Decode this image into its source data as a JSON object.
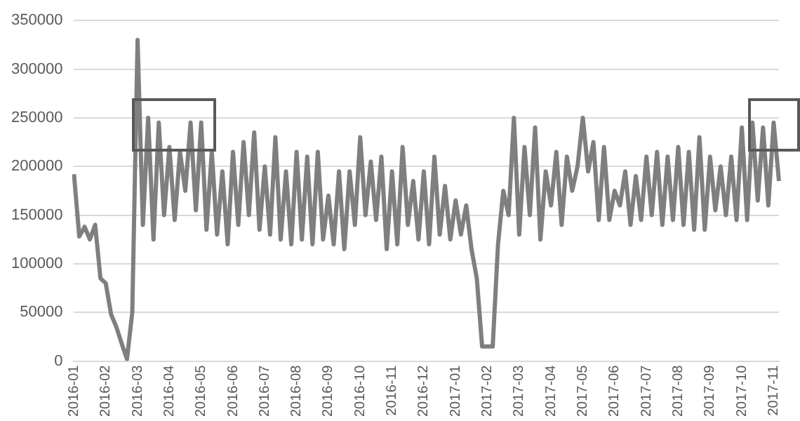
{
  "chart_data": {
    "type": "line",
    "categories": [
      "2016-01",
      null,
      null,
      null,
      null,
      null,
      "2016-02",
      null,
      null,
      null,
      null,
      null,
      "2016-03",
      null,
      null,
      null,
      null,
      null,
      "2016-04",
      null,
      null,
      null,
      null,
      null,
      "2016-05",
      null,
      null,
      null,
      null,
      null,
      "2016-06",
      null,
      null,
      null,
      null,
      null,
      "2016-07",
      null,
      null,
      null,
      null,
      null,
      "2016-08",
      null,
      null,
      null,
      null,
      null,
      "2016-09",
      null,
      null,
      null,
      null,
      null,
      "2016-10",
      null,
      null,
      null,
      null,
      null,
      "2016-11",
      null,
      null,
      null,
      null,
      null,
      "2016-12",
      null,
      null,
      null,
      null,
      null,
      "2017-01",
      null,
      null,
      null,
      null,
      null,
      "2017-02",
      null,
      null,
      null,
      null,
      null,
      "2017-03",
      null,
      null,
      null,
      null,
      null,
      "2017-04",
      null,
      null,
      null,
      null,
      null,
      "2017-05",
      null,
      null,
      null,
      null,
      null,
      "2017-06",
      null,
      null,
      null,
      null,
      null,
      "2017-07",
      null,
      null,
      null,
      null,
      null,
      "2017-08",
      null,
      null,
      null,
      null,
      null,
      "2017-09",
      null,
      null,
      null,
      null,
      null,
      "2017-10",
      null,
      null,
      null,
      null,
      null,
      "2017-11",
      null
    ],
    "series": [
      {
        "color": "#7f7f7f",
        "values": [
          192000,
          128000,
          138000,
          125000,
          140000,
          85000,
          80000,
          48000,
          35000,
          18000,
          2000,
          50000,
          330000,
          140000,
          250000,
          125000,
          245000,
          150000,
          220000,
          145000,
          215000,
          175000,
          245000,
          155000,
          245000,
          135000,
          215000,
          130000,
          195000,
          120000,
          215000,
          140000,
          225000,
          150000,
          235000,
          135000,
          200000,
          130000,
          230000,
          125000,
          195000,
          120000,
          215000,
          125000,
          210000,
          120000,
          215000,
          125000,
          170000,
          120000,
          195000,
          115000,
          195000,
          140000,
          230000,
          150000,
          205000,
          145000,
          210000,
          115000,
          195000,
          120000,
          220000,
          140000,
          185000,
          125000,
          195000,
          120000,
          210000,
          130000,
          180000,
          125000,
          165000,
          130000,
          160000,
          115000,
          85000,
          15000,
          15000,
          15000,
          120000,
          175000,
          150000,
          250000,
          130000,
          220000,
          150000,
          240000,
          125000,
          195000,
          160000,
          215000,
          140000,
          210000,
          175000,
          200000,
          250000,
          195000,
          225000,
          145000,
          220000,
          145000,
          175000,
          160000,
          195000,
          140000,
          190000,
          145000,
          210000,
          150000,
          215000,
          140000,
          210000,
          145000,
          220000,
          140000,
          215000,
          135000,
          230000,
          135000,
          210000,
          155000,
          200000,
          150000,
          210000,
          145000,
          240000,
          145000,
          245000,
          165000,
          240000,
          160000,
          245000,
          185000
        ]
      }
    ],
    "ylim": [
      0,
      350000
    ],
    "yticks": [
      0,
      50000,
      100000,
      150000,
      200000,
      250000,
      300000,
      350000
    ],
    "grid": "y",
    "legend": false,
    "marker": "none",
    "line_style": "solid"
  }
}
